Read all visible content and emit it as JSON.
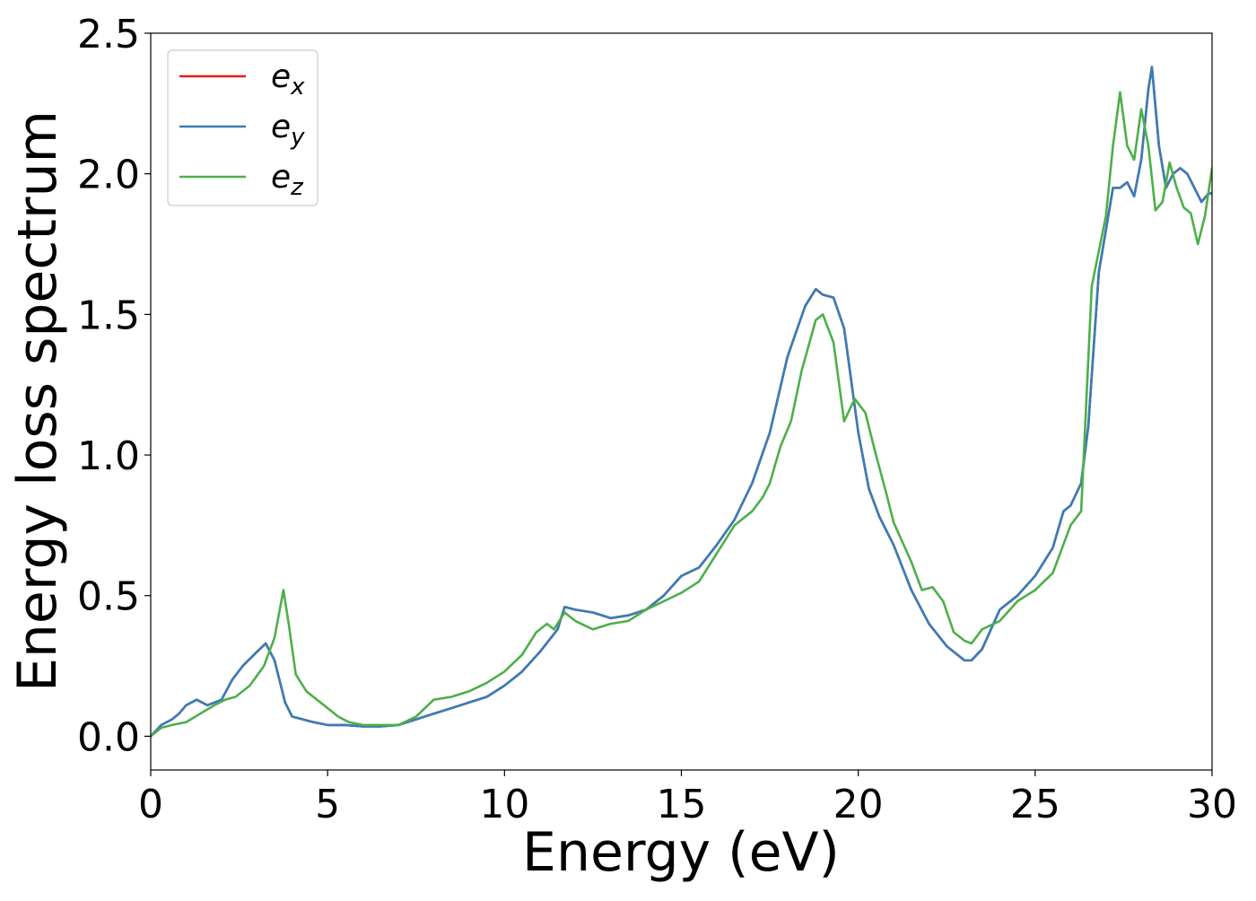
{
  "chart_data": {
    "type": "line",
    "title": "",
    "xlabel": "Energy (eV)",
    "ylabel": "Energy loss spectrum",
    "xlim": [
      0,
      30
    ],
    "ylim": [
      -0.12,
      2.5
    ],
    "xticks": [
      0,
      5,
      10,
      15,
      20,
      25,
      30
    ],
    "xtick_labels": [
      "0",
      "5",
      "10",
      "15",
      "20",
      "25",
      "30"
    ],
    "yticks": [
      0.0,
      0.5,
      1.0,
      1.5,
      2.0,
      2.5
    ],
    "ytick_labels": [
      "0.0",
      "0.5",
      "1.0",
      "1.5",
      "2.0",
      "2.5"
    ],
    "grid": false,
    "legend_position": "top-left",
    "legend_entries": [
      {
        "base": "e",
        "sub": "x",
        "color": "#e41a1c"
      },
      {
        "base": "e",
        "sub": "y",
        "color": "#377eb8"
      },
      {
        "base": "e",
        "sub": "z",
        "color": "#4daf4a"
      }
    ],
    "series": [
      {
        "name": "e_x",
        "color": "#e41a1c",
        "x": [
          0,
          0.3,
          0.6,
          0.8,
          1.0,
          1.3,
          1.6,
          2.0,
          2.3,
          2.6,
          3.0,
          3.25,
          3.5,
          3.8,
          4.0,
          4.3,
          4.6,
          5.0,
          5.5,
          6.0,
          6.5,
          7.0,
          7.5,
          8.0,
          8.5,
          9.0,
          9.5,
          10.0,
          10.5,
          11.0,
          11.5,
          11.7,
          12.0,
          12.5,
          13.0,
          13.5,
          14.0,
          14.5,
          15.0,
          15.5,
          16.0,
          16.5,
          17.0,
          17.5,
          18.0,
          18.5,
          18.8,
          19.0,
          19.3,
          19.6,
          20.0,
          20.3,
          20.6,
          21.0,
          21.5,
          22.0,
          22.5,
          23.0,
          23.2,
          23.5,
          24.0,
          24.5,
          25.0,
          25.5,
          25.8,
          26.0,
          26.3,
          26.5,
          26.8,
          27.0,
          27.2,
          27.4,
          27.6,
          27.8,
          28.0,
          28.2,
          28.3,
          28.5,
          28.7,
          28.9,
          29.1,
          29.3,
          29.5,
          29.7,
          29.9,
          30.0
        ],
        "y": [
          0.0,
          0.04,
          0.06,
          0.08,
          0.11,
          0.13,
          0.11,
          0.13,
          0.2,
          0.25,
          0.3,
          0.33,
          0.27,
          0.12,
          0.07,
          0.06,
          0.05,
          0.04,
          0.04,
          0.035,
          0.035,
          0.04,
          0.06,
          0.08,
          0.1,
          0.12,
          0.14,
          0.18,
          0.23,
          0.3,
          0.38,
          0.46,
          0.45,
          0.44,
          0.42,
          0.43,
          0.45,
          0.5,
          0.57,
          0.6,
          0.68,
          0.77,
          0.9,
          1.08,
          1.35,
          1.53,
          1.59,
          1.57,
          1.56,
          1.45,
          1.08,
          0.88,
          0.78,
          0.68,
          0.52,
          0.4,
          0.32,
          0.27,
          0.27,
          0.31,
          0.45,
          0.5,
          0.57,
          0.67,
          0.8,
          0.82,
          0.9,
          1.1,
          1.65,
          1.8,
          1.95,
          1.95,
          1.97,
          1.92,
          2.05,
          2.3,
          2.38,
          2.1,
          1.95,
          2.0,
          2.02,
          2.0,
          1.95,
          1.9,
          1.93,
          1.93
        ]
      },
      {
        "name": "e_y",
        "color": "#377eb8",
        "x": [
          0,
          0.3,
          0.6,
          0.8,
          1.0,
          1.3,
          1.6,
          2.0,
          2.3,
          2.6,
          3.0,
          3.25,
          3.5,
          3.8,
          4.0,
          4.3,
          4.6,
          5.0,
          5.5,
          6.0,
          6.5,
          7.0,
          7.5,
          8.0,
          8.5,
          9.0,
          9.5,
          10.0,
          10.5,
          11.0,
          11.5,
          11.7,
          12.0,
          12.5,
          13.0,
          13.5,
          14.0,
          14.5,
          15.0,
          15.5,
          16.0,
          16.5,
          17.0,
          17.5,
          18.0,
          18.5,
          18.8,
          19.0,
          19.3,
          19.6,
          20.0,
          20.3,
          20.6,
          21.0,
          21.5,
          22.0,
          22.5,
          23.0,
          23.2,
          23.5,
          24.0,
          24.5,
          25.0,
          25.5,
          25.8,
          26.0,
          26.3,
          26.5,
          26.8,
          27.0,
          27.2,
          27.4,
          27.6,
          27.8,
          28.0,
          28.2,
          28.3,
          28.5,
          28.7,
          28.9,
          29.1,
          29.3,
          29.5,
          29.7,
          29.9,
          30.0
        ],
        "y": [
          0.0,
          0.04,
          0.06,
          0.08,
          0.11,
          0.13,
          0.11,
          0.13,
          0.2,
          0.25,
          0.3,
          0.33,
          0.27,
          0.12,
          0.07,
          0.06,
          0.05,
          0.04,
          0.04,
          0.035,
          0.035,
          0.04,
          0.06,
          0.08,
          0.1,
          0.12,
          0.14,
          0.18,
          0.23,
          0.3,
          0.38,
          0.46,
          0.45,
          0.44,
          0.42,
          0.43,
          0.45,
          0.5,
          0.57,
          0.6,
          0.68,
          0.77,
          0.9,
          1.08,
          1.35,
          1.53,
          1.59,
          1.57,
          1.56,
          1.45,
          1.08,
          0.88,
          0.78,
          0.68,
          0.52,
          0.4,
          0.32,
          0.27,
          0.27,
          0.31,
          0.45,
          0.5,
          0.57,
          0.67,
          0.8,
          0.82,
          0.9,
          1.1,
          1.65,
          1.8,
          1.95,
          1.95,
          1.97,
          1.92,
          2.05,
          2.3,
          2.38,
          2.1,
          1.95,
          2.0,
          2.02,
          2.0,
          1.95,
          1.9,
          1.93,
          1.93
        ]
      },
      {
        "name": "e_z",
        "color": "#4daf4a",
        "x": [
          0,
          0.3,
          0.6,
          1.0,
          1.4,
          1.8,
          2.1,
          2.4,
          2.8,
          3.2,
          3.5,
          3.75,
          3.9,
          4.1,
          4.4,
          4.7,
          5.0,
          5.3,
          5.6,
          6.0,
          6.5,
          7.0,
          7.5,
          8.0,
          8.5,
          9.0,
          9.5,
          10.0,
          10.5,
          10.9,
          11.2,
          11.4,
          11.7,
          12.0,
          12.5,
          13.0,
          13.5,
          14.0,
          14.5,
          15.0,
          15.5,
          16.0,
          16.5,
          17.0,
          17.3,
          17.5,
          17.8,
          18.1,
          18.4,
          18.8,
          19.0,
          19.3,
          19.6,
          19.9,
          20.2,
          20.5,
          20.8,
          21.0,
          21.5,
          21.8,
          22.1,
          22.4,
          22.7,
          23.0,
          23.2,
          23.5,
          24.0,
          24.5,
          25.0,
          25.5,
          26.0,
          26.3,
          26.6,
          27.0,
          27.2,
          27.4,
          27.6,
          27.8,
          28.0,
          28.2,
          28.4,
          28.6,
          28.8,
          29.0,
          29.2,
          29.4,
          29.6,
          29.8,
          30.0
        ],
        "y": [
          0.0,
          0.03,
          0.04,
          0.05,
          0.08,
          0.11,
          0.13,
          0.14,
          0.18,
          0.25,
          0.35,
          0.52,
          0.4,
          0.22,
          0.16,
          0.13,
          0.1,
          0.07,
          0.05,
          0.04,
          0.04,
          0.04,
          0.07,
          0.13,
          0.14,
          0.16,
          0.19,
          0.23,
          0.29,
          0.37,
          0.4,
          0.38,
          0.44,
          0.41,
          0.38,
          0.4,
          0.41,
          0.45,
          0.48,
          0.51,
          0.55,
          0.65,
          0.75,
          0.8,
          0.85,
          0.9,
          1.03,
          1.12,
          1.3,
          1.48,
          1.5,
          1.4,
          1.12,
          1.2,
          1.15,
          1.0,
          0.86,
          0.76,
          0.62,
          0.52,
          0.53,
          0.48,
          0.37,
          0.34,
          0.33,
          0.38,
          0.41,
          0.48,
          0.52,
          0.58,
          0.75,
          0.8,
          1.6,
          1.85,
          2.1,
          2.29,
          2.1,
          2.05,
          2.23,
          2.1,
          1.87,
          1.9,
          2.04,
          1.95,
          1.88,
          1.86,
          1.75,
          1.85,
          2.02
        ]
      }
    ]
  }
}
